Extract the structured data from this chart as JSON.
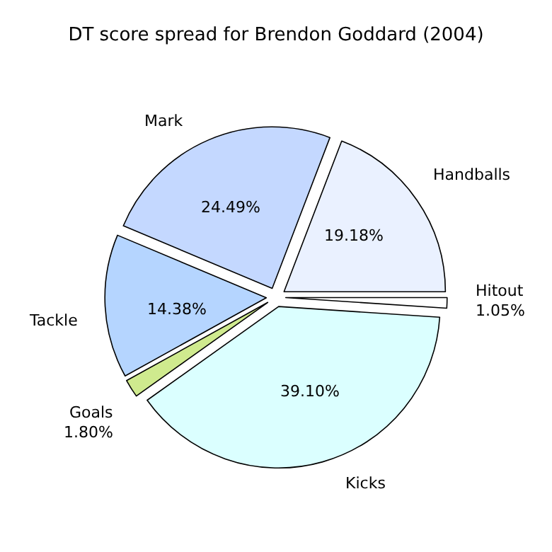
{
  "chart_data": {
    "type": "pie",
    "title": "DT score spread for Brendon Goddard (2004)",
    "categories": [
      "Hitout",
      "Handballs",
      "Mark",
      "Tackle",
      "Goals",
      "Kicks"
    ],
    "values": [
      1.05,
      19.18,
      24.49,
      14.38,
      1.8,
      39.1
    ],
    "value_labels": [
      "1.05%",
      "19.18%",
      "24.49%",
      "14.38%",
      "1.80%",
      "39.10%"
    ],
    "colors": [
      "#ffffff",
      "#eaf1ff",
      "#c4d8ff",
      "#b5d5ff",
      "#cfea8e",
      "#dbffff"
    ],
    "legend": false
  }
}
